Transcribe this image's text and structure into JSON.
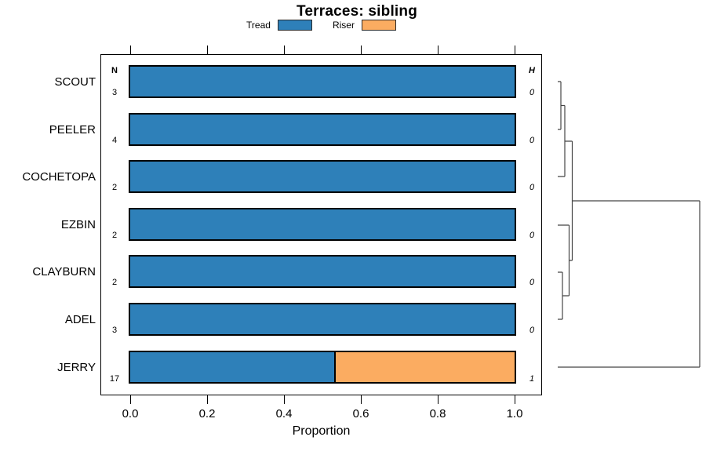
{
  "chart_data": {
    "type": "bar",
    "variant": "horizontal-stacked-proportion-with-dendrogram",
    "title": "Terraces: sibling",
    "xlabel": "Proportion",
    "xlim": [
      0.0,
      1.0
    ],
    "x_ticks": [
      "0.0",
      "0.2",
      "0.4",
      "0.6",
      "0.8",
      "1.0"
    ],
    "grid": false,
    "legend_position": "top-center",
    "n_header": "N",
    "h_header": "H",
    "categories": [
      "SCOUT",
      "PEELER",
      "COCHETOPA",
      "EZBIN",
      "CLAYBURN",
      "ADEL",
      "JERRY"
    ],
    "n_values": [
      3,
      4,
      2,
      2,
      2,
      3,
      17
    ],
    "h_values": [
      0,
      0,
      0,
      0,
      0,
      0,
      1
    ],
    "series": [
      {
        "name": "Tread",
        "color": "#2E80B9",
        "values": [
          1.0,
          1.0,
          1.0,
          1.0,
          1.0,
          1.0,
          0.53
        ]
      },
      {
        "name": "Riser",
        "color": "#FBAC61",
        "values": [
          0.0,
          0.0,
          0.0,
          0.0,
          0.0,
          0.0,
          0.47
        ]
      }
    ],
    "legend": [
      {
        "label": "Tread",
        "color": "#2E80B9"
      },
      {
        "label": "Riser",
        "color": "#FBAC61"
      }
    ],
    "dendrogram": {
      "side": "right",
      "leaf_order": [
        "SCOUT",
        "PEELER",
        "COCHETOPA",
        "EZBIN",
        "CLAYBURN",
        "ADEL",
        "JERRY"
      ],
      "structure": "(((SCOUT,PEELER),COCHETOPA),(EZBIN,(CLAYBURN,ADEL)),JERRY)",
      "merges": [
        {
          "members": [
            "SCOUT",
            "PEELER"
          ],
          "height": 0
        },
        {
          "members": [
            "CLAYBURN",
            "ADEL"
          ],
          "height": 0
        },
        {
          "members": [
            "SCOUT+PEELER",
            "COCHETOPA"
          ],
          "height": 0
        },
        {
          "members": [
            "EZBIN",
            "CLAYBURN+ADEL"
          ],
          "height": 0
        },
        {
          "members": [
            "SCOUT+PEELER+COCHETOPA",
            "EZBIN+CLAYBURN+ADEL"
          ],
          "height": 0
        },
        {
          "members": [
            "cluster-of-six",
            "JERRY"
          ],
          "height": 1
        }
      ]
    }
  }
}
